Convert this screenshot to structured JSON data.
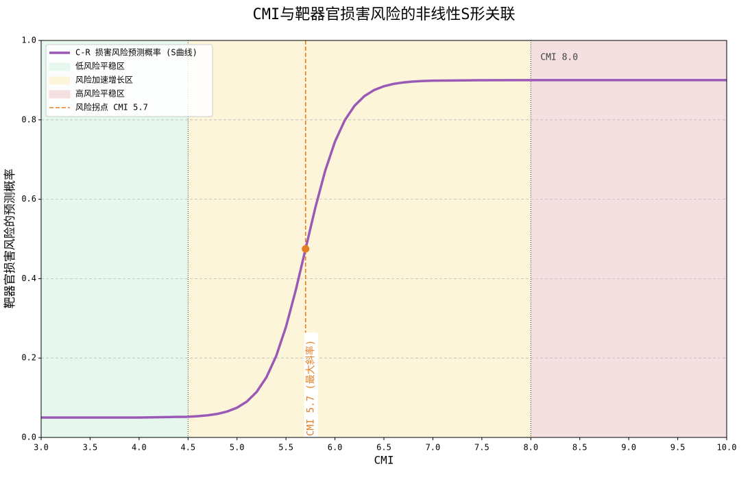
{
  "chart_data": {
    "type": "line",
    "title": "CMI与靶器官损害风险的非线性S形关联",
    "xlabel": "CMI",
    "ylabel": "靶器官损害风险的预测概率",
    "x": [
      3.0,
      3.5,
      4.0,
      4.5,
      4.6,
      4.7,
      4.8,
      4.9,
      5.0,
      5.1,
      5.2,
      5.3,
      5.4,
      5.5,
      5.6,
      5.7,
      5.8,
      5.9,
      6.0,
      6.1,
      6.2,
      6.3,
      6.4,
      6.5,
      6.6,
      6.7,
      6.8,
      6.9,
      7.0,
      7.5,
      8.0,
      8.5,
      9.0,
      9.5,
      10.0
    ],
    "series": [
      {
        "name": "C-R 损害风险预测概率 (S曲线)",
        "color": "#9b59b6",
        "values": [
          0.05,
          0.05001,
          0.05017,
          0.0521,
          0.0535,
          0.0557,
          0.0593,
          0.0653,
          0.0749,
          0.0903,
          0.1145,
          0.1513,
          0.2051,
          0.2786,
          0.3709,
          0.475,
          0.5791,
          0.6714,
          0.7449,
          0.7987,
          0.8355,
          0.8597,
          0.8751,
          0.8847,
          0.8907,
          0.8943,
          0.8965,
          0.8979,
          0.8987,
          0.8999,
          0.9,
          0.9,
          0.9,
          0.9,
          0.9
        ]
      }
    ],
    "zones": [
      {
        "name": "低风险平稳区",
        "range": [
          3.0,
          4.5
        ],
        "color": "#e6f7ee"
      },
      {
        "name": "风险加速增长区",
        "range": [
          4.5,
          8.0
        ],
        "color": "#fcf5da"
      },
      {
        "name": "高风险平稳区",
        "range": [
          8.0,
          10.0
        ],
        "color": "#f4e0e0"
      }
    ],
    "inflection": {
      "name": "风险拐点 CMI 5.7",
      "x": 5.7,
      "y": 0.475,
      "color": "#e67e22"
    },
    "annotations": [
      "CMI 5.7 (最大斜率)",
      "CMI 8.0"
    ],
    "xlim": [
      3.0,
      10.0
    ],
    "ylim": [
      0.0,
      1.0
    ],
    "xticks": [
      {
        "value": 3,
        "label": "3.0"
      },
      3.5,
      {
        "value": 4,
        "label": "4.0"
      },
      4.5,
      {
        "value": 5,
        "label": "5.0"
      },
      5.5,
      {
        "value": 6,
        "label": "6.0"
      },
      6.5,
      {
        "value": 7,
        "label": "7.0"
      },
      7.5,
      {
        "value": 8,
        "label": "8.0"
      },
      8.5,
      {
        "value": 9,
        "label": "9.0"
      },
      9.5,
      {
        "value": 10,
        "label": "10.0"
      }
    ],
    "yticks": [
      {
        "value": 0,
        "label": "0.0"
      },
      0.2,
      0.4,
      0.6,
      0.8,
      {
        "value": 1,
        "label": "1.0"
      }
    ],
    "grid": true,
    "legend": "upper left"
  }
}
